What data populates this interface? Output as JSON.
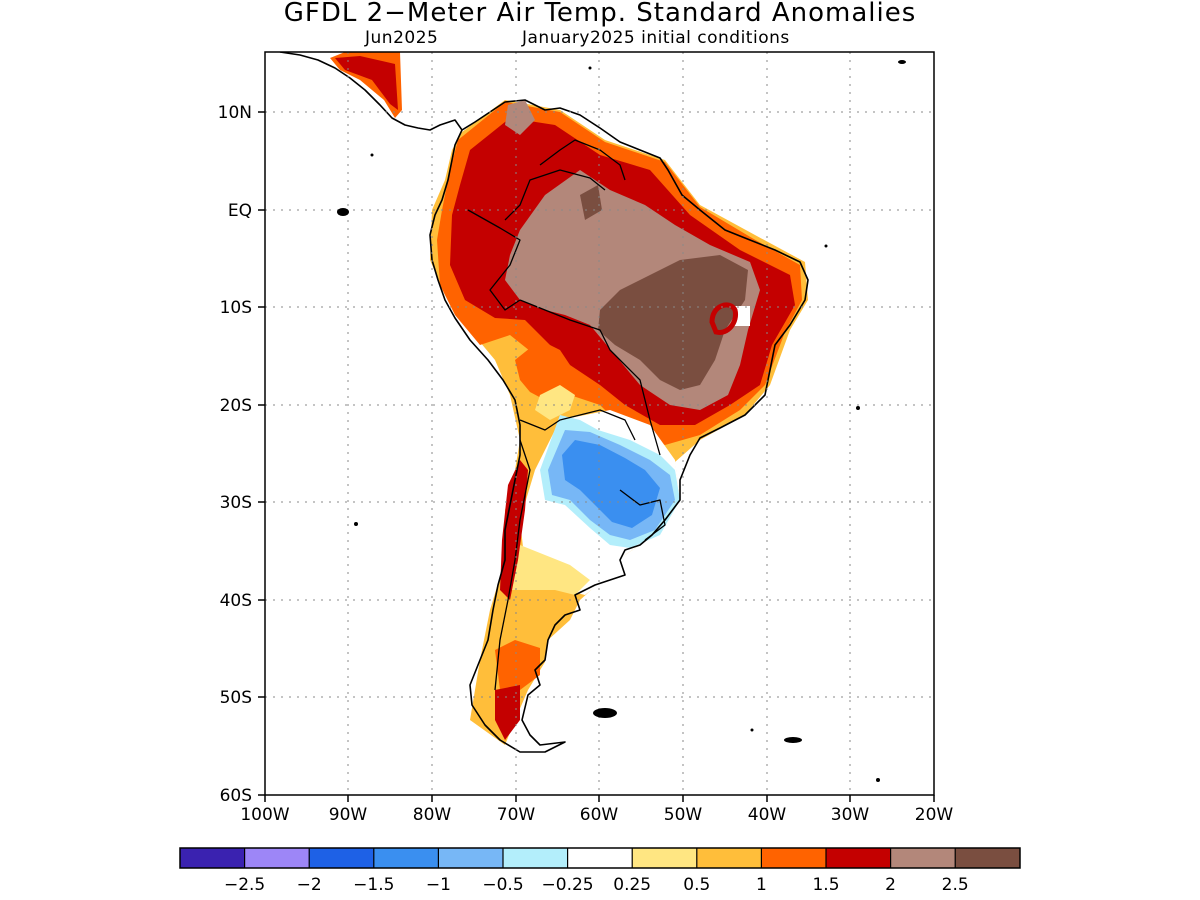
{
  "header": {
    "title": "GFDL 2−Meter Air Temp. Standard Anomalies",
    "subtitle_left": "Jun2025",
    "subtitle_right": "January2025 initial conditions"
  },
  "map": {
    "lat_labels": [
      "10N",
      "EQ",
      "10S",
      "20S",
      "30S",
      "40S",
      "50S",
      "60S"
    ],
    "lon_labels": [
      "100W",
      "90W",
      "80W",
      "70W",
      "60W",
      "50W",
      "40W",
      "30W",
      "20W"
    ]
  },
  "colorbar": {
    "colors": [
      "#3a22b0",
      "#9d86f7",
      "#1e61e6",
      "#3a8ff0",
      "#77b7f6",
      "#b3eefb",
      "#ffffff",
      "#ffe682",
      "#ffbe3a",
      "#ff6300",
      "#c40000",
      "#b3877a",
      "#7a4e40"
    ],
    "tick_labels": [
      "−2.5",
      "−2",
      "−1.5",
      "−1",
      "−0.5",
      "−0.25",
      "0.25",
      "0.5",
      "1",
      "1.5",
      "2",
      "2.5"
    ]
  }
}
